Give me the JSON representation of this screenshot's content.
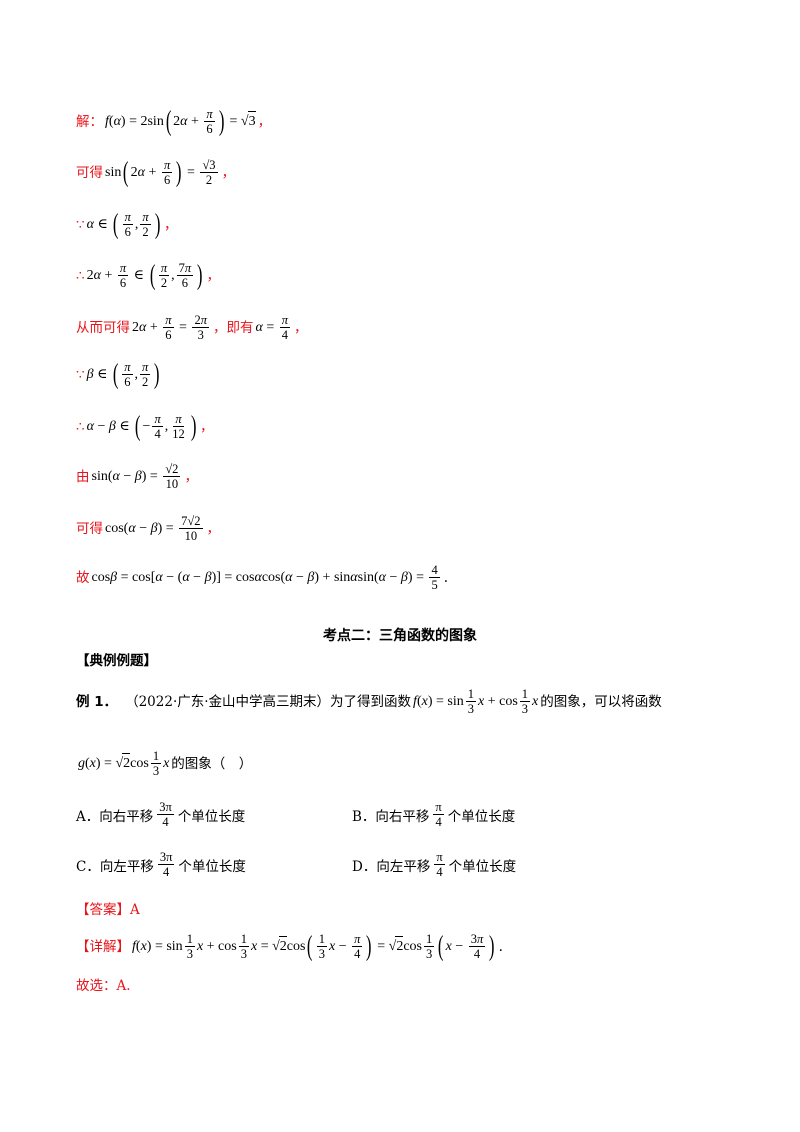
{
  "solution": {
    "l1_prefix": "解：",
    "l1_math": "f(α) = 2sin(2α + π/6) = √3",
    "l1_suffix": "，",
    "l2_prefix": "可得",
    "l2_math": "sin(2α + π/6) = √3/2",
    "l2_suffix": "，",
    "l3_sym": "∵",
    "l3_math": "α ∈ (π/6, π/2)",
    "l3_suffix": "，",
    "l4_sym": "∴",
    "l4_math": "2α + π/6 ∈ (π/2, 7π/6)",
    "l4_suffix": "，",
    "l5_prefix": "从而可得",
    "l5_math_a": "2α + π/6 = 2π/3",
    "l5_mid": "，即有",
    "l5_math_b": "α = π/4",
    "l5_suffix": "，",
    "l6_sym": "∵",
    "l6_math": "β ∈ (π/6, π/2)",
    "l7_sym": "∴",
    "l7_math": "α − β ∈ (−π/4, π/12)",
    "l7_suffix": "，",
    "l8_prefix": "由",
    "l8_math": "sin(α − β) = √2/10",
    "l8_suffix": "，",
    "l9_prefix": "可得",
    "l9_math": "cos(α − β) = 7√2/10",
    "l9_suffix": "，",
    "l10_prefix": "故",
    "l10_math": "cosβ = cos[α − (α − β)] = cosαcos(α − β) + sinαsin(α − β) = 4/5",
    "l10_suffix": "."
  },
  "section_title": "考点二：三角函数的图象",
  "example_header": "【典例例题】",
  "example": {
    "label": "例 1．",
    "source": "（2022·广东·金山中学高三期末）为了得到函数",
    "func_f": "f(x) = sin(1/3)x + cos(1/3)x",
    "mid": "的图象，可以将函数",
    "func_g": "g(x) = √2cos(1/3)x",
    "tail": "的图象（　）"
  },
  "options": [
    {
      "letter": "A．",
      "text_a": "向右平移",
      "frac_num": "3π",
      "frac_den": "4",
      "text_b": "个单位长度"
    },
    {
      "letter": "B．",
      "text_a": "向右平移",
      "frac_num": "π",
      "frac_den": "4",
      "text_b": "个单位长度"
    },
    {
      "letter": "C．",
      "text_a": "向左平移",
      "frac_num": "3π",
      "frac_den": "4",
      "text_b": "个单位长度"
    },
    {
      "letter": "D．",
      "text_a": "向左平移",
      "frac_num": "π",
      "frac_den": "4",
      "text_b": "个单位长度"
    }
  ],
  "answer": {
    "label": "【答案】",
    "value": "A"
  },
  "detail": {
    "label": "【详解】",
    "math": "f(x) = sin(1/3)x + cos(1/3)x = √2cos((1/3)x − π/4) = √2cos(1/3)(x − 3π/4)",
    "suffix": "."
  },
  "conclusion": "故选：A."
}
